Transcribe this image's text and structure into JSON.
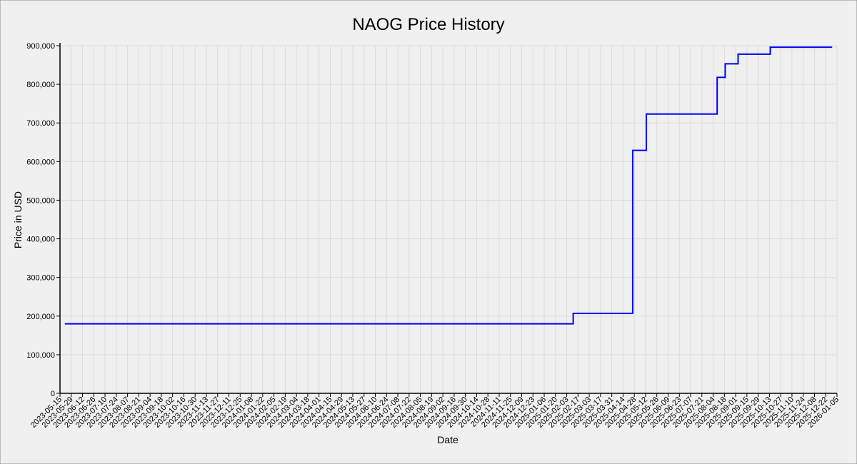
{
  "chart_data": {
    "type": "line",
    "title": "NAOG Price History",
    "xlabel": "Date",
    "ylabel": "Price in USD",
    "ylim": [
      0,
      900000
    ],
    "xlim": [
      "2023-05-15",
      "2026-01-05"
    ],
    "grid": true,
    "line_style": "step",
    "colors": {
      "background": "#f0f0f0",
      "grid": "#dcdcdc",
      "axis": "#000000",
      "series": "#0000ff"
    },
    "y_ticks": [
      0,
      100000,
      200000,
      300000,
      400000,
      500000,
      600000,
      700000,
      800000,
      900000
    ],
    "y_tick_labels": [
      "0",
      "100,000",
      "200,000",
      "300,000",
      "400,000",
      "500,000",
      "600,000",
      "700,000",
      "800,000",
      "900,000"
    ],
    "x_tick_labels": [
      "2023-05-15",
      "2023-05-29",
      "2023-06-12",
      "2023-06-26",
      "2023-07-10",
      "2023-07-24",
      "2023-08-07",
      "2023-08-21",
      "2023-09-04",
      "2023-09-18",
      "2023-10-02",
      "2023-10-16",
      "2023-10-30",
      "2023-11-13",
      "2023-11-27",
      "2023-12-11",
      "2023-12-25",
      "2024-01-08",
      "2024-01-22",
      "2024-02-05",
      "2024-02-19",
      "2024-03-04",
      "2024-03-18",
      "2024-04-01",
      "2024-04-15",
      "2024-04-29",
      "2024-05-13",
      "2024-05-27",
      "2024-06-10",
      "2024-06-24",
      "2024-07-08",
      "2024-07-22",
      "2024-08-05",
      "2024-08-19",
      "2024-09-02",
      "2024-09-16",
      "2024-09-30",
      "2024-10-14",
      "2024-10-28",
      "2024-11-11",
      "2024-11-25",
      "2024-12-09",
      "2024-12-23",
      "2025-01-06",
      "2025-01-20",
      "2025-02-03",
      "2025-02-17",
      "2025-03-03",
      "2025-03-17",
      "2025-03-31",
      "2025-04-14",
      "2025-04-28",
      "2025-05-12",
      "2025-05-26",
      "2025-06-09",
      "2025-06-23",
      "2025-07-07",
      "2025-07-21",
      "2025-08-04",
      "2025-08-18",
      "2025-09-01",
      "2025-09-15",
      "2025-09-29",
      "2025-10-13",
      "2025-10-27",
      "2025-11-10",
      "2025-11-24",
      "2025-12-08",
      "2025-12-22",
      "2026-01-05"
    ],
    "series": [
      {
        "x": [
          "2023-05-21",
          "2025-02-11",
          "2025-04-26",
          "2025-05-13",
          "2025-08-09",
          "2025-08-19",
          "2025-09-04",
          "2025-10-14",
          "2025-12-30"
        ],
        "values": [
          180000,
          207000,
          629000,
          723000,
          818000,
          853000,
          878000,
          896000,
          896000
        ]
      }
    ]
  }
}
